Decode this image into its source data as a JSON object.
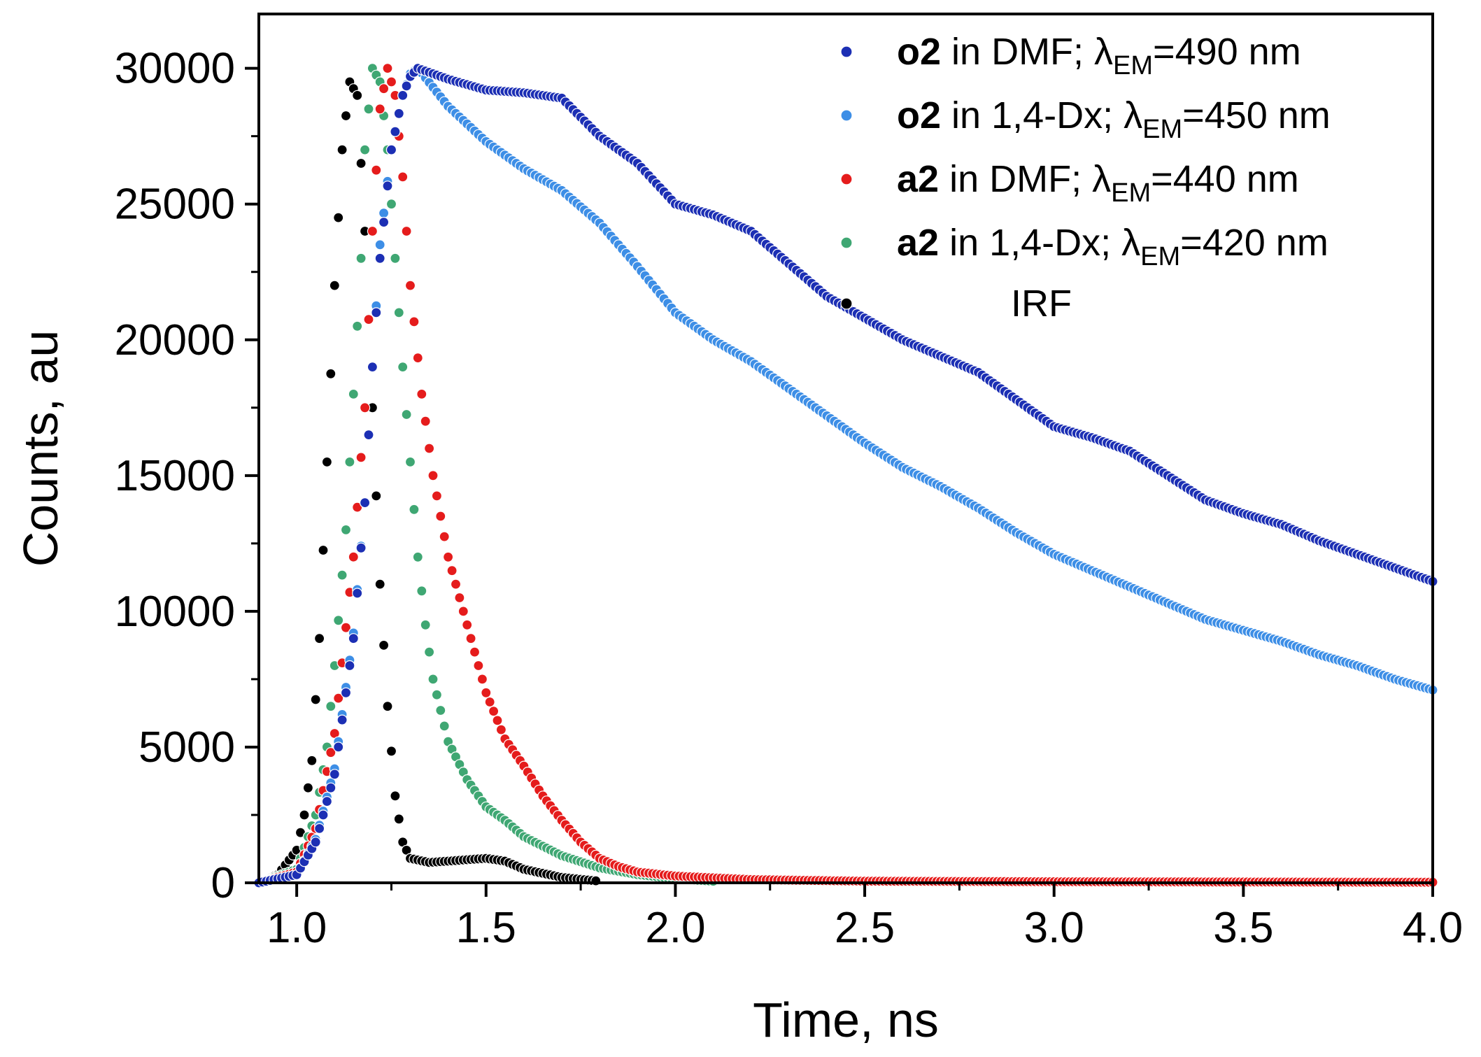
{
  "chart_data": {
    "type": "scatter",
    "xlabel": "Time, ns",
    "ylabel": "Counts, au",
    "xlim": [
      0.9,
      4.0
    ],
    "ylim": [
      0,
      32000
    ],
    "x_ticks": [
      "1.0",
      "1.5",
      "2.0",
      "2.5",
      "3.0",
      "3.5",
      "4.0"
    ],
    "y_ticks": [
      "0",
      "5000",
      "10000",
      "15000",
      "20000",
      "25000",
      "30000"
    ],
    "legend_position": "top-right",
    "series": [
      {
        "name": "o2 in DMF; λEM=490 nm",
        "name_bold": "o2",
        "name_rest": " in DMF; λ",
        "name_sub": "EM",
        "name_tail": "=490 nm",
        "color": "#1c2fb4",
        "points": [
          [
            0.9,
            0
          ],
          [
            1.0,
            300
          ],
          [
            1.05,
            1500
          ],
          [
            1.1,
            4000
          ],
          [
            1.15,
            9000
          ],
          [
            1.18,
            14000
          ],
          [
            1.2,
            19000
          ],
          [
            1.22,
            23000
          ],
          [
            1.25,
            27000
          ],
          [
            1.28,
            29000
          ],
          [
            1.3,
            29700
          ],
          [
            1.32,
            30000
          ],
          [
            1.4,
            29600
          ],
          [
            1.5,
            29200
          ],
          [
            1.6,
            29100
          ],
          [
            1.7,
            28900
          ],
          [
            1.8,
            27500
          ],
          [
            1.9,
            26500
          ],
          [
            2.0,
            25000
          ],
          [
            2.1,
            24600
          ],
          [
            2.2,
            24000
          ],
          [
            2.3,
            22800
          ],
          [
            2.4,
            21600
          ],
          [
            2.5,
            20800
          ],
          [
            2.6,
            20000
          ],
          [
            2.7,
            19400
          ],
          [
            2.8,
            18800
          ],
          [
            2.9,
            17800
          ],
          [
            3.0,
            16800
          ],
          [
            3.1,
            16400
          ],
          [
            3.2,
            15900
          ],
          [
            3.3,
            15000
          ],
          [
            3.4,
            14100
          ],
          [
            3.5,
            13600
          ],
          [
            3.6,
            13200
          ],
          [
            3.7,
            12600
          ],
          [
            3.8,
            12100
          ],
          [
            3.9,
            11600
          ],
          [
            4.0,
            11100
          ]
        ]
      },
      {
        "name": "o2 in 1,4-Dx; λEM=450 nm",
        "name_bold": "o2",
        "name_rest": " in 1,4-Dx; λ",
        "name_sub": "EM",
        "name_tail": "=450 nm",
        "color": "#3d8ee6",
        "points": [
          [
            0.9,
            0
          ],
          [
            1.0,
            300
          ],
          [
            1.05,
            1600
          ],
          [
            1.1,
            4200
          ],
          [
            1.15,
            9200
          ],
          [
            1.18,
            14000
          ],
          [
            1.2,
            19000
          ],
          [
            1.22,
            23500
          ],
          [
            1.25,
            27000
          ],
          [
            1.28,
            29000
          ],
          [
            1.3,
            29800
          ],
          [
            1.32,
            30000
          ],
          [
            1.4,
            28600
          ],
          [
            1.5,
            27300
          ],
          [
            1.6,
            26300
          ],
          [
            1.7,
            25500
          ],
          [
            1.8,
            24300
          ],
          [
            1.9,
            22700
          ],
          [
            2.0,
            21000
          ],
          [
            2.1,
            20000
          ],
          [
            2.2,
            19200
          ],
          [
            2.3,
            18200
          ],
          [
            2.4,
            17200
          ],
          [
            2.5,
            16200
          ],
          [
            2.6,
            15300
          ],
          [
            2.7,
            14600
          ],
          [
            2.8,
            13800
          ],
          [
            2.9,
            12900
          ],
          [
            3.0,
            12100
          ],
          [
            3.1,
            11500
          ],
          [
            3.2,
            10900
          ],
          [
            3.3,
            10300
          ],
          [
            3.4,
            9700
          ],
          [
            3.5,
            9300
          ],
          [
            3.6,
            8900
          ],
          [
            3.7,
            8400
          ],
          [
            3.8,
            8000
          ],
          [
            3.9,
            7500
          ],
          [
            4.0,
            7100
          ]
        ]
      },
      {
        "name": "a2 in DMF; λEM=440 nm",
        "name_bold": "a2",
        "name_rest": " in DMF; λ",
        "name_sub": "EM",
        "name_tail": "=440 nm",
        "color": "#e51c1c",
        "points": [
          [
            0.9,
            0
          ],
          [
            1.0,
            400
          ],
          [
            1.05,
            2000
          ],
          [
            1.1,
            5500
          ],
          [
            1.15,
            12000
          ],
          [
            1.18,
            17500
          ],
          [
            1.2,
            24000
          ],
          [
            1.22,
            28500
          ],
          [
            1.24,
            30000
          ],
          [
            1.26,
            29000
          ],
          [
            1.28,
            26000
          ],
          [
            1.3,
            22000
          ],
          [
            1.33,
            18000
          ],
          [
            1.36,
            15000
          ],
          [
            1.4,
            12000
          ],
          [
            1.45,
            9500
          ],
          [
            1.5,
            7000
          ],
          [
            1.55,
            5300
          ],
          [
            1.6,
            4300
          ],
          [
            1.65,
            3200
          ],
          [
            1.7,
            2300
          ],
          [
            1.75,
            1500
          ],
          [
            1.8,
            900
          ],
          [
            1.85,
            600
          ],
          [
            1.9,
            400
          ],
          [
            2.0,
            250
          ],
          [
            2.2,
            120
          ],
          [
            2.5,
            60
          ],
          [
            3.0,
            40
          ],
          [
            3.5,
            30
          ],
          [
            4.0,
            20
          ]
        ]
      },
      {
        "name": "a2 in 1,4-Dx; λEM=420 nm",
        "name_bold": "a2",
        "name_rest": " in 1,4-Dx; λ",
        "name_sub": "EM",
        "name_tail": "=420 nm",
        "color": "#3fa773",
        "points": [
          [
            0.9,
            0
          ],
          [
            1.0,
            500
          ],
          [
            1.05,
            2500
          ],
          [
            1.08,
            5000
          ],
          [
            1.1,
            8000
          ],
          [
            1.13,
            13000
          ],
          [
            1.15,
            18000
          ],
          [
            1.17,
            23000
          ],
          [
            1.18,
            27000
          ],
          [
            1.2,
            30000
          ],
          [
            1.22,
            29500
          ],
          [
            1.24,
            27000
          ],
          [
            1.26,
            23000
          ],
          [
            1.28,
            19000
          ],
          [
            1.3,
            15500
          ],
          [
            1.32,
            12000
          ],
          [
            1.34,
            9500
          ],
          [
            1.36,
            7500
          ],
          [
            1.4,
            5200
          ],
          [
            1.45,
            3800
          ],
          [
            1.5,
            2800
          ],
          [
            1.55,
            2300
          ],
          [
            1.6,
            1700
          ],
          [
            1.7,
            1000
          ],
          [
            1.8,
            550
          ],
          [
            1.9,
            300
          ],
          [
            2.0,
            150
          ],
          [
            2.1,
            60
          ]
        ]
      },
      {
        "name": "IRF",
        "name_bold": "",
        "name_rest": "IRF",
        "name_sub": "",
        "name_tail": "",
        "color": "#000000",
        "points": [
          [
            0.9,
            0
          ],
          [
            0.95,
            300
          ],
          [
            1.0,
            1200
          ],
          [
            1.02,
            2500
          ],
          [
            1.04,
            4500
          ],
          [
            1.06,
            9000
          ],
          [
            1.08,
            15500
          ],
          [
            1.1,
            22000
          ],
          [
            1.12,
            27000
          ],
          [
            1.14,
            29500
          ],
          [
            1.16,
            29000
          ],
          [
            1.18,
            24000
          ],
          [
            1.2,
            17500
          ],
          [
            1.22,
            11000
          ],
          [
            1.24,
            6500
          ],
          [
            1.26,
            3200
          ],
          [
            1.28,
            1500
          ],
          [
            1.3,
            900
          ],
          [
            1.35,
            750
          ],
          [
            1.4,
            800
          ],
          [
            1.45,
            850
          ],
          [
            1.5,
            900
          ],
          [
            1.55,
            800
          ],
          [
            1.6,
            500
          ],
          [
            1.7,
            200
          ],
          [
            1.8,
            60
          ]
        ]
      }
    ]
  }
}
